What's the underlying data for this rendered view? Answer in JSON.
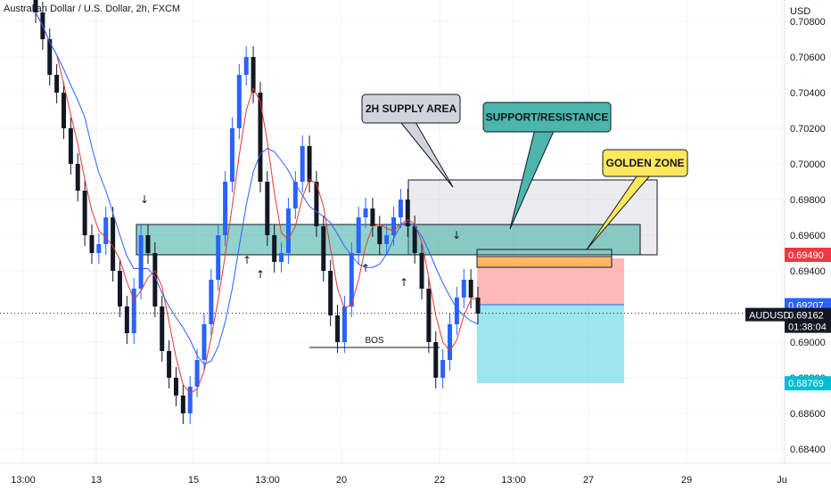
{
  "header": {
    "title": "Australian Dollar / U.S. Dollar, 2h, FXCM"
  },
  "axis": {
    "currency": "USD",
    "price_ticks": [
      "0.70800",
      "0.70600",
      "0.70400",
      "0.70200",
      "0.70000",
      "0.69800",
      "0.69600",
      "0.69400",
      "0.69000",
      "0.68800",
      "0.68600",
      "0.68400"
    ],
    "time_ticks": [
      "13:00",
      "13",
      "15",
      "13:00",
      "20",
      "22",
      "13:00",
      "27",
      "29",
      "Ju"
    ]
  },
  "tags": {
    "resistance_price": "0.69490",
    "entry_price": "0.69207",
    "current_symbol": "AUDUSD",
    "current_price": "0.69162",
    "countdown": "01:38:04",
    "target_price": "0.68769"
  },
  "annotations": {
    "supply": "2H SUPPLY AREA",
    "support_resistance": "SUPPORT/RESISTANCE",
    "golden_zone": "GOLDEN ZONE",
    "bos": "BOS"
  },
  "colors": {
    "up": "#2962ff",
    "down": "#131722",
    "ma_fast": "#e53935",
    "ma_slow": "#2962ff",
    "zone_green": "#26a69a",
    "supply_gray": "#b2b5be",
    "golden": "#ffe85c",
    "stop": "#ff8a8a",
    "target": "#5ad6e6",
    "resistance_tag": "#f23645",
    "entry_tag": "#2962ff",
    "target_tag": "#00bcd4"
  },
  "chart_data": {
    "type": "candlestick",
    "ylim": [
      0.6832,
      0.7092
    ],
    "series": [
      {
        "name": "AUDUSD",
        "description": "approximate 2h candles, selected points",
        "close": [
          0.7085,
          0.707,
          0.705,
          0.704,
          0.702,
          0.7,
          0.6985,
          0.696,
          0.695,
          0.6955,
          0.697,
          0.694,
          0.692,
          0.6905,
          0.693,
          0.696,
          0.695,
          0.692,
          0.6895,
          0.688,
          0.687,
          0.686,
          0.6875,
          0.689,
          0.691,
          0.6935,
          0.696,
          0.699,
          0.702,
          0.705,
          0.706,
          0.704,
          0.699,
          0.696,
          0.6945,
          0.695,
          0.6975,
          0.699,
          0.701,
          0.699,
          0.6965,
          0.694,
          0.6915,
          0.69,
          0.692,
          0.695,
          0.697,
          0.6975,
          0.6965,
          0.6955,
          0.696,
          0.697,
          0.698,
          0.6965,
          0.695,
          0.693,
          0.69,
          0.688,
          0.689,
          0.691,
          0.6925,
          0.6935,
          0.6925,
          0.6916
        ]
      }
    ],
    "levels": {
      "support_resistance_zone": [
        0.6949,
        0.6966
      ],
      "supply_area": [
        0.6949,
        0.6991
      ],
      "golden_zone": [
        0.6942,
        0.6948
      ],
      "stop_zone": [
        0.6921,
        0.6947
      ],
      "target_zone": [
        0.6877,
        0.6921
      ],
      "bos_level": 0.6897
    }
  }
}
